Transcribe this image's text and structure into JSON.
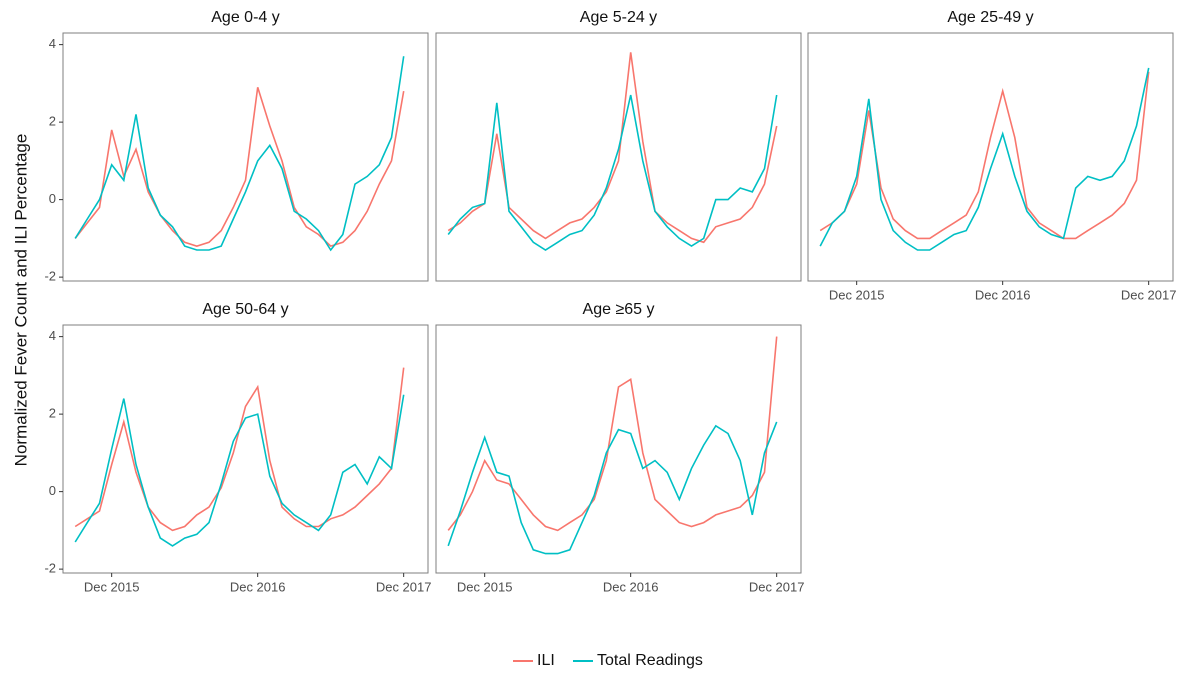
{
  "y_label": "Normalized Fever Count and ILI Percentage",
  "chart_data": [
    {
      "type": "line",
      "title": "Age 0-4 y",
      "x": [
        "2015-09",
        "2015-10",
        "2015-11",
        "2015-12",
        "2016-01",
        "2016-02",
        "2016-03",
        "2016-04",
        "2016-05",
        "2016-06",
        "2016-07",
        "2016-08",
        "2016-09",
        "2016-10",
        "2016-11",
        "2016-12",
        "2017-01",
        "2017-02",
        "2017-03",
        "2017-04",
        "2017-05",
        "2017-06",
        "2017-07",
        "2017-08",
        "2017-09",
        "2017-10",
        "2017-11",
        "2017-12"
      ],
      "xlim": [
        "2015-08",
        "2018-02"
      ],
      "ylim": [
        -2.1,
        4.3
      ],
      "yticks": [
        -2,
        0,
        2,
        4
      ],
      "series": [
        {
          "name": "ILI",
          "color": "#F8766D",
          "values": [
            -1.0,
            -0.6,
            -0.2,
            1.8,
            0.6,
            1.3,
            0.2,
            -0.4,
            -0.8,
            -1.1,
            -1.2,
            -1.1,
            -0.8,
            -0.2,
            0.5,
            2.9,
            1.9,
            1.0,
            -0.2,
            -0.7,
            -0.9,
            -1.2,
            -1.1,
            -0.8,
            -0.3,
            0.4,
            1.0,
            2.8
          ]
        },
        {
          "name": "Total Readings",
          "color": "#00BFC4",
          "values": [
            -1.0,
            -0.5,
            0.0,
            0.9,
            0.5,
            2.2,
            0.3,
            -0.4,
            -0.7,
            -1.2,
            -1.3,
            -1.3,
            -1.2,
            -0.5,
            0.2,
            1.0,
            1.4,
            0.8,
            -0.3,
            -0.5,
            -0.8,
            -1.3,
            -0.9,
            0.4,
            0.6,
            0.9,
            1.6,
            3.7
          ]
        }
      ]
    },
    {
      "type": "line",
      "title": "Age 5-24 y",
      "x": [
        "2015-09",
        "2015-10",
        "2015-11",
        "2015-12",
        "2016-01",
        "2016-02",
        "2016-03",
        "2016-04",
        "2016-05",
        "2016-06",
        "2016-07",
        "2016-08",
        "2016-09",
        "2016-10",
        "2016-11",
        "2016-12",
        "2017-01",
        "2017-02",
        "2017-03",
        "2017-04",
        "2017-05",
        "2017-06",
        "2017-07",
        "2017-08",
        "2017-09",
        "2017-10",
        "2017-11",
        "2017-12"
      ],
      "xlim": [
        "2015-08",
        "2018-02"
      ],
      "ylim": [
        -2.1,
        4.3
      ],
      "series": [
        {
          "name": "ILI",
          "color": "#F8766D",
          "values": [
            -0.8,
            -0.6,
            -0.3,
            -0.1,
            1.7,
            -0.2,
            -0.5,
            -0.8,
            -1.0,
            -0.8,
            -0.6,
            -0.5,
            -0.2,
            0.2,
            1.0,
            3.8,
            1.5,
            -0.3,
            -0.6,
            -0.8,
            -1.0,
            -1.1,
            -0.7,
            -0.6,
            -0.5,
            -0.2,
            0.4,
            1.9
          ]
        },
        {
          "name": "Total Readings",
          "color": "#00BFC4",
          "values": [
            -0.9,
            -0.5,
            -0.2,
            -0.1,
            2.5,
            -0.3,
            -0.7,
            -1.1,
            -1.3,
            -1.1,
            -0.9,
            -0.8,
            -0.4,
            0.3,
            1.3,
            2.7,
            1.0,
            -0.3,
            -0.7,
            -1.0,
            -1.2,
            -1.0,
            0.0,
            0.0,
            0.3,
            0.2,
            0.8,
            2.7
          ]
        }
      ]
    },
    {
      "type": "line",
      "title": "Age 25-49 y",
      "x": [
        "2015-09",
        "2015-10",
        "2015-11",
        "2015-12",
        "2016-01",
        "2016-02",
        "2016-03",
        "2016-04",
        "2016-05",
        "2016-06",
        "2016-07",
        "2016-08",
        "2016-09",
        "2016-10",
        "2016-11",
        "2016-12",
        "2017-01",
        "2017-02",
        "2017-03",
        "2017-04",
        "2017-05",
        "2017-06",
        "2017-07",
        "2017-08",
        "2017-09",
        "2017-10",
        "2017-11",
        "2017-12"
      ],
      "xlim": [
        "2015-08",
        "2018-02"
      ],
      "ylim": [
        -2.1,
        4.3
      ],
      "xticks": [
        {
          "value": "2015-12",
          "label": "Dec 2015"
        },
        {
          "value": "2016-12",
          "label": "Dec 2016"
        },
        {
          "value": "2017-12",
          "label": "Dec 2017"
        }
      ],
      "series": [
        {
          "name": "ILI",
          "color": "#F8766D",
          "values": [
            -0.8,
            -0.6,
            -0.3,
            0.4,
            2.3,
            0.3,
            -0.5,
            -0.8,
            -1.0,
            -1.0,
            -0.8,
            -0.6,
            -0.4,
            0.2,
            1.6,
            2.8,
            1.6,
            -0.2,
            -0.6,
            -0.8,
            -1.0,
            -1.0,
            -0.8,
            -0.6,
            -0.4,
            -0.1,
            0.5,
            3.3
          ]
        },
        {
          "name": "Total Readings",
          "color": "#00BFC4",
          "values": [
            -1.2,
            -0.6,
            -0.3,
            0.6,
            2.6,
            0.0,
            -0.8,
            -1.1,
            -1.3,
            -1.3,
            -1.1,
            -0.9,
            -0.8,
            -0.2,
            0.8,
            1.7,
            0.6,
            -0.3,
            -0.7,
            -0.9,
            -1.0,
            0.3,
            0.6,
            0.5,
            0.6,
            1.0,
            1.9,
            3.4
          ]
        }
      ]
    },
    {
      "type": "line",
      "title": "Age 50-64 y",
      "x": [
        "2015-09",
        "2015-10",
        "2015-11",
        "2015-12",
        "2016-01",
        "2016-02",
        "2016-03",
        "2016-04",
        "2016-05",
        "2016-06",
        "2016-07",
        "2016-08",
        "2016-09",
        "2016-10",
        "2016-11",
        "2016-12",
        "2017-01",
        "2017-02",
        "2017-03",
        "2017-04",
        "2017-05",
        "2017-06",
        "2017-07",
        "2017-08",
        "2017-09",
        "2017-10",
        "2017-11",
        "2017-12"
      ],
      "xlim": [
        "2015-08",
        "2018-02"
      ],
      "ylim": [
        -2.1,
        4.3
      ],
      "yticks": [
        -2,
        0,
        2,
        4
      ],
      "xticks": [
        {
          "value": "2015-12",
          "label": "Dec 2015"
        },
        {
          "value": "2016-12",
          "label": "Dec 2016"
        },
        {
          "value": "2017-12",
          "label": "Dec 2017"
        }
      ],
      "series": [
        {
          "name": "ILI",
          "color": "#F8766D",
          "values": [
            -0.9,
            -0.7,
            -0.5,
            0.7,
            1.8,
            0.5,
            -0.4,
            -0.8,
            -1.0,
            -0.9,
            -0.6,
            -0.4,
            0.1,
            1.0,
            2.2,
            2.7,
            0.8,
            -0.4,
            -0.7,
            -0.9,
            -0.9,
            -0.7,
            -0.6,
            -0.4,
            -0.1,
            0.2,
            0.6,
            3.2
          ]
        },
        {
          "name": "Total Readings",
          "color": "#00BFC4",
          "values": [
            -1.3,
            -0.8,
            -0.3,
            1.1,
            2.4,
            0.7,
            -0.4,
            -1.2,
            -1.4,
            -1.2,
            -1.1,
            -0.8,
            0.2,
            1.3,
            1.9,
            2.0,
            0.4,
            -0.3,
            -0.6,
            -0.8,
            -1.0,
            -0.6,
            0.5,
            0.7,
            0.2,
            0.9,
            0.6,
            2.5
          ]
        }
      ]
    },
    {
      "type": "line",
      "title": "Age ≥65 y",
      "x": [
        "2015-09",
        "2015-10",
        "2015-11",
        "2015-12",
        "2016-01",
        "2016-02",
        "2016-03",
        "2016-04",
        "2016-05",
        "2016-06",
        "2016-07",
        "2016-08",
        "2016-09",
        "2016-10",
        "2016-11",
        "2016-12",
        "2017-01",
        "2017-02",
        "2017-03",
        "2017-04",
        "2017-05",
        "2017-06",
        "2017-07",
        "2017-08",
        "2017-09",
        "2017-10",
        "2017-11",
        "2017-12"
      ],
      "xlim": [
        "2015-08",
        "2018-02"
      ],
      "ylim": [
        -2.1,
        4.3
      ],
      "xticks": [
        {
          "value": "2015-12",
          "label": "Dec 2015"
        },
        {
          "value": "2016-12",
          "label": "Dec 2016"
        },
        {
          "value": "2017-12",
          "label": "Dec 2017"
        }
      ],
      "series": [
        {
          "name": "ILI",
          "color": "#F8766D",
          "values": [
            -1.0,
            -0.6,
            0.0,
            0.8,
            0.3,
            0.2,
            -0.2,
            -0.6,
            -0.9,
            -1.0,
            -0.8,
            -0.6,
            -0.2,
            0.8,
            2.7,
            2.9,
            1.0,
            -0.2,
            -0.5,
            -0.8,
            -0.9,
            -0.8,
            -0.6,
            -0.5,
            -0.4,
            -0.1,
            0.5,
            4.0
          ]
        },
        {
          "name": "Total Readings",
          "color": "#00BFC4",
          "values": [
            -1.4,
            -0.5,
            0.5,
            1.4,
            0.5,
            0.4,
            -0.8,
            -1.5,
            -1.6,
            -1.6,
            -1.5,
            -0.8,
            -0.1,
            1.0,
            1.6,
            1.5,
            0.6,
            0.8,
            0.5,
            -0.2,
            0.6,
            1.2,
            1.7,
            1.5,
            0.8,
            -0.6,
            1.0,
            1.8
          ]
        }
      ]
    }
  ]
}
